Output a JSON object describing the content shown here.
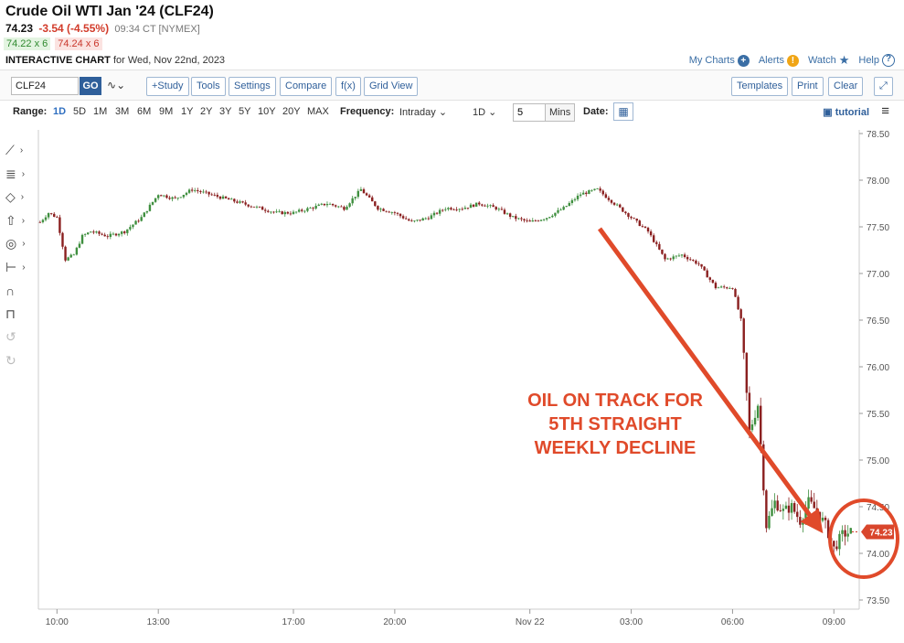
{
  "header": {
    "title": "Crude Oil WTI Jan '24 (CLF24)",
    "last": "74.23",
    "change": "-3.54 (-4.55%)",
    "time": "09:34 CT [NYMEX]",
    "bid": "74.22 x 6",
    "ask": "74.24 x 6",
    "chart_kind": "INTERACTIVE CHART",
    "chart_for": "for Wed, Nov 22nd, 2023"
  },
  "links": {
    "my_charts": "My Charts",
    "alerts": "Alerts",
    "watch": "Watch",
    "help": "Help"
  },
  "toolbar": {
    "symbol": "CLF24",
    "go": "GO",
    "study": "+Study",
    "tools": "Tools",
    "settings": "Settings",
    "compare": "Compare",
    "fx": "f(x)",
    "grid_view": "Grid View",
    "templates": "Templates",
    "print": "Print",
    "clear": "Clear"
  },
  "rangebar": {
    "range_label": "Range:",
    "ranges": [
      "1D",
      "5D",
      "1M",
      "3M",
      "6M",
      "9M",
      "1Y",
      "2Y",
      "3Y",
      "5Y",
      "10Y",
      "20Y",
      "MAX"
    ],
    "active_range": "1D",
    "frequency_label": "Frequency:",
    "frequency": "Intraday",
    "period": "1D",
    "interval": "5",
    "interval_unit": "Mins",
    "date_label": "Date:",
    "tutorial": "tutorial"
  },
  "icons": {
    "left_tools": [
      "line-tool-icon",
      "fib-tool-icon",
      "shape-tool-icon",
      "arrow-tool-icon",
      "target-tool-icon",
      "measure-tool-icon",
      "magnet-icon",
      "lock-icon",
      "undo-icon",
      "redo-icon"
    ]
  },
  "annotation": {
    "lines": [
      "OIL ON TRACK FOR",
      "5TH STRAIGHT",
      "WEEKLY DECLINE"
    ],
    "color": "#e04a2a"
  },
  "chart_data": {
    "type": "line",
    "style": "candlestick",
    "ylim": [
      73.5,
      78.5
    ],
    "y_ticks": [
      "73.50",
      "74.00",
      "74.50",
      "75.00",
      "75.50",
      "76.00",
      "76.50",
      "77.00",
      "77.50",
      "78.00",
      "78.50"
    ],
    "x_tick_labels": [
      "10:00",
      "13:00",
      "17:00",
      "20:00",
      "Nov 22",
      "03:00",
      "06:00",
      "09:00"
    ],
    "x_tick_hours": [
      10,
      13,
      17,
      20,
      24,
      27,
      30,
      33
    ],
    "x_range_hours": [
      9.45,
      33.75
    ],
    "last_price_label": "74.23",
    "last_price": 74.23,
    "up_color": "#3f8f3f",
    "down_color": "#8a1f1f",
    "x_hours": [
      9.5,
      9.75,
      10.0,
      10.25,
      10.5,
      10.75,
      11.0,
      11.5,
      12.0,
      12.5,
      13.0,
      13.5,
      14.0,
      14.5,
      15.0,
      15.5,
      16.0,
      16.5,
      17.0,
      17.5,
      18.0,
      18.5,
      19.0,
      19.5,
      20.0,
      20.5,
      21.0,
      21.5,
      22.0,
      22.5,
      23.0,
      23.5,
      24.0,
      24.5,
      25.0,
      25.5,
      26.0,
      26.5,
      27.0,
      27.5,
      28.0,
      28.5,
      29.0,
      29.5,
      30.0,
      30.25,
      30.5,
      30.75,
      31.0,
      31.25,
      31.5,
      31.75,
      32.0,
      32.25,
      32.5,
      32.75,
      33.0,
      33.25,
      33.5
    ],
    "y_values": [
      77.55,
      77.65,
      77.6,
      77.15,
      77.2,
      77.4,
      77.45,
      77.4,
      77.45,
      77.6,
      77.85,
      77.8,
      77.9,
      77.85,
      77.8,
      77.75,
      77.7,
      77.65,
      77.65,
      77.7,
      77.75,
      77.7,
      77.9,
      77.7,
      77.65,
      77.55,
      77.6,
      77.7,
      77.7,
      77.75,
      77.7,
      77.6,
      77.55,
      77.6,
      77.7,
      77.85,
      77.9,
      77.75,
      77.6,
      77.45,
      77.15,
      77.2,
      77.1,
      76.85,
      76.85,
      76.5,
      75.3,
      75.6,
      74.3,
      74.55,
      74.45,
      74.5,
      74.35,
      74.55,
      74.45,
      74.3,
      74.05,
      74.2,
      74.23
    ]
  }
}
